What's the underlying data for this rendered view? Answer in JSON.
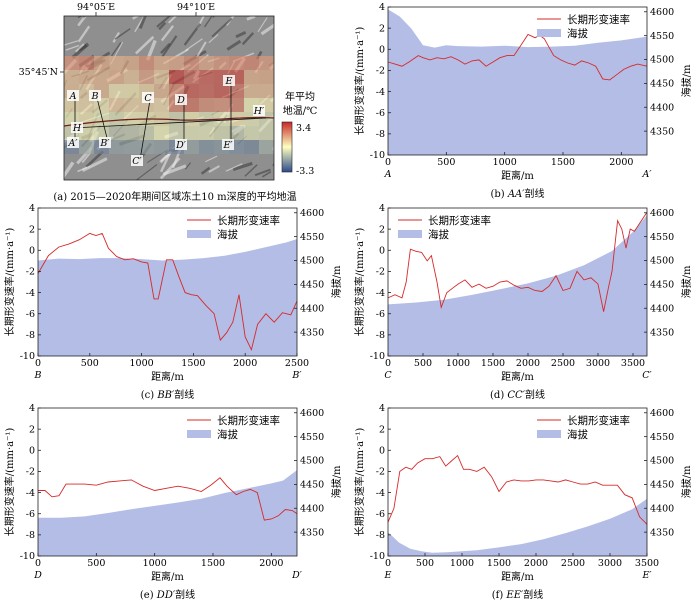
{
  "map_panel": {
    "lon_labels": [
      "94°05′E",
      "94°10′E"
    ],
    "lat_label": "35°45′N",
    "legend_title_line1": "年平均",
    "legend_title_line2": "地温/℃",
    "legend_max": "3.4",
    "legend_min": "-3.3",
    "profile_letters": [
      "A",
      "B",
      "C",
      "D",
      "E",
      "H",
      "A′",
      "B′",
      "C′",
      "D′",
      "E′",
      "H′"
    ],
    "caption": "(a) 2015—2020年期间区域冻土10 m深度的平均地温"
  },
  "colors": {
    "deformation_line": "#d62a2a",
    "elevation_fill": "#b3bde6",
    "colorbar_high": "#c62828",
    "colorbar_mid": "#ffffbf",
    "colorbar_low": "#2c4a8c"
  },
  "chart_data": [
    {
      "id": "b",
      "type": "line",
      "caption_prefix": "(b) ",
      "caption_name": "AA′",
      "caption_suffix": "剖线",
      "start_label": "A",
      "end_label": "A′",
      "xlabel": "距离/m",
      "ylabel_left": "长期形变速率/(mm·a⁻¹)",
      "ylabel_right": "海拔/m",
      "legend": [
        "长期形变速率",
        "海拔"
      ],
      "legend_placement": "top-right",
      "xlim": [
        0,
        2220
      ],
      "xticks": [
        0,
        500,
        1000,
        1500,
        2000
      ],
      "ylim_left": [
        -10,
        4
      ],
      "yticks_left": [
        -10,
        -8,
        -6,
        -4,
        -2,
        0,
        2,
        4
      ],
      "ylim_right": [
        4300,
        4610
      ],
      "yticks_right": [
        4350,
        4400,
        4450,
        4500,
        4550,
        4600
      ],
      "deformation_x": [
        0,
        60,
        120,
        180,
        220,
        260,
        300,
        360,
        420,
        480,
        540,
        600,
        660,
        720,
        780,
        840,
        900,
        960,
        1020,
        1080,
        1140,
        1200,
        1260,
        1300,
        1340,
        1380,
        1420,
        1480,
        1540,
        1600,
        1660,
        1720,
        1780,
        1840,
        1900,
        1960,
        2020,
        2080,
        2140,
        2220
      ],
      "deformation_y": [
        -1.2,
        -1.4,
        -1.6,
        -1.2,
        -0.9,
        -0.6,
        -0.8,
        -1.0,
        -0.8,
        -0.9,
        -0.7,
        -1.0,
        -1.4,
        -1.1,
        -1.0,
        -1.6,
        -1.2,
        -0.8,
        -0.6,
        -0.6,
        0.4,
        1.4,
        1.1,
        1.3,
        1.0,
        0.2,
        -0.6,
        -1.0,
        -1.3,
        -1.5,
        -1.1,
        -1.3,
        -1.6,
        -2.8,
        -2.9,
        -2.4,
        -1.9,
        -1.6,
        -1.4,
        -1.6
      ],
      "elevation_x": [
        0,
        100,
        200,
        300,
        400,
        500,
        600,
        800,
        1000,
        1200,
        1400,
        1600,
        1800,
        2000,
        2220
      ],
      "elevation_y": [
        4605,
        4590,
        4565,
        4530,
        4525,
        4530,
        4528,
        4527,
        4529,
        4526,
        4527,
        4529,
        4535,
        4540,
        4548
      ]
    },
    {
      "id": "c",
      "type": "line",
      "caption_prefix": "(c) ",
      "caption_name": "BB′",
      "caption_suffix": "剖线",
      "start_label": "B",
      "end_label": "B′",
      "xlabel": "距离/m",
      "ylabel_left": "长期形变速率/(mm·a⁻¹)",
      "ylabel_right": "海拔/m",
      "legend": [
        "长期形变速率",
        "海拔"
      ],
      "legend_placement": "top-right",
      "xlim": [
        0,
        2500
      ],
      "xticks": [
        0,
        500,
        1000,
        1500,
        2000,
        2500
      ],
      "ylim_left": [
        -10,
        4
      ],
      "yticks_left": [
        -10,
        -8,
        -6,
        -4,
        -2,
        0,
        2,
        4
      ],
      "ylim_right": [
        4300,
        4610
      ],
      "yticks_right": [
        4350,
        4400,
        4450,
        4500,
        4550,
        4600
      ],
      "deformation_x": [
        0,
        100,
        200,
        300,
        400,
        500,
        560,
        620,
        680,
        760,
        840,
        920,
        1000,
        1060,
        1120,
        1160,
        1240,
        1300,
        1360,
        1420,
        1480,
        1540,
        1620,
        1700,
        1760,
        1820,
        1880,
        1940,
        2000,
        2060,
        2120,
        2200,
        2280,
        2360,
        2440,
        2500
      ],
      "deformation_y": [
        -2.2,
        -0.5,
        0.3,
        0.6,
        1.0,
        1.6,
        1.4,
        1.6,
        0.2,
        -0.6,
        -0.9,
        -0.8,
        -1.1,
        -1.2,
        -4.6,
        -4.6,
        -0.9,
        -0.9,
        -2.5,
        -4.0,
        -4.2,
        -4.3,
        -5.2,
        -6.0,
        -8.5,
        -7.8,
        -6.8,
        -4.2,
        -8.2,
        -9.4,
        -7.0,
        -6.0,
        -6.8,
        -5.9,
        -6.1,
        -4.8
      ],
      "elevation_x": [
        0,
        200,
        400,
        600,
        800,
        1000,
        1200,
        1400,
        1600,
        1800,
        2000,
        2200,
        2400,
        2500
      ],
      "elevation_y": [
        4500,
        4504,
        4503,
        4505,
        4505,
        4503,
        4500,
        4502,
        4505,
        4510,
        4518,
        4528,
        4538,
        4545
      ]
    },
    {
      "id": "d",
      "type": "line",
      "caption_prefix": "(d) ",
      "caption_name": "CC′",
      "caption_suffix": "剖线",
      "start_label": "C",
      "end_label": "C′",
      "xlabel": "距离/m",
      "ylabel_left": "长期形变速率/(mm·a⁻¹)",
      "ylabel_right": "海拔/m",
      "legend": [
        "长期形变速率",
        "海拔"
      ],
      "legend_placement": "top-left",
      "xlim": [
        0,
        3700
      ],
      "xticks": [
        0,
        500,
        1000,
        1500,
        2000,
        2500,
        3000,
        3500
      ],
      "ylim_left": [
        -10,
        4
      ],
      "yticks_left": [
        -10,
        -8,
        -6,
        -4,
        -2,
        0,
        2,
        4
      ],
      "ylim_right": [
        4300,
        4610
      ],
      "yticks_right": [
        4350,
        4400,
        4450,
        4500,
        4550,
        4600
      ],
      "deformation_x": [
        0,
        100,
        200,
        260,
        320,
        400,
        480,
        560,
        620,
        700,
        760,
        840,
        920,
        1000,
        1100,
        1200,
        1300,
        1400,
        1500,
        1600,
        1700,
        1800,
        1900,
        2000,
        2100,
        2200,
        2300,
        2400,
        2500,
        2600,
        2700,
        2800,
        2900,
        3000,
        3080,
        3150,
        3200,
        3280,
        3340,
        3400,
        3460,
        3520,
        3600,
        3700
      ],
      "deformation_y": [
        -4.5,
        -4.2,
        -4.5,
        -3.0,
        0.1,
        -0.1,
        -0.2,
        -1.0,
        -0.5,
        -3.0,
        -5.4,
        -4.0,
        -3.6,
        -3.2,
        -2.8,
        -3.5,
        -3.2,
        -3.6,
        -3.4,
        -3.0,
        -2.9,
        -3.3,
        -3.6,
        -3.5,
        -3.8,
        -3.9,
        -3.4,
        -2.4,
        -3.8,
        -3.6,
        -2.0,
        -2.8,
        -2.6,
        -3.2,
        -5.8,
        -3.5,
        -2.0,
        2.8,
        2.0,
        0.2,
        2.0,
        1.8,
        2.6,
        3.6
      ],
      "elevation_x": [
        0,
        400,
        800,
        1200,
        1600,
        2000,
        2400,
        2800,
        3200,
        3500,
        3700
      ],
      "elevation_y": [
        4408,
        4412,
        4418,
        4428,
        4440,
        4452,
        4468,
        4490,
        4520,
        4560,
        4595
      ]
    },
    {
      "id": "e",
      "type": "line",
      "caption_prefix": "(e) ",
      "caption_name": "DD′",
      "caption_suffix": "剖线",
      "start_label": "D",
      "end_label": "D′",
      "xlabel": "距离/m",
      "ylabel_left": "长期形变速率/(mm·a⁻¹)",
      "ylabel_right": "海拔/m",
      "legend": [
        "长期形变速率",
        "海拔"
      ],
      "legend_placement": "top-right",
      "xlim": [
        0,
        2220
      ],
      "xticks": [
        0,
        500,
        1000,
        1500,
        2000
      ],
      "ylim_left": [
        -10,
        4
      ],
      "yticks_left": [
        -10,
        -8,
        -6,
        -4,
        -2,
        0,
        2,
        4
      ],
      "ylim_right": [
        4300,
        4610
      ],
      "yticks_right": [
        4350,
        4400,
        4450,
        4500,
        4550,
        4600
      ],
      "deformation_x": [
        0,
        60,
        120,
        180,
        240,
        300,
        400,
        500,
        600,
        700,
        800,
        900,
        1000,
        1100,
        1200,
        1300,
        1400,
        1480,
        1560,
        1620,
        1700,
        1760,
        1820,
        1880,
        1940,
        2000,
        2060,
        2120,
        2180,
        2220
      ],
      "deformation_y": [
        -3.8,
        -3.8,
        -4.4,
        -4.3,
        -3.2,
        -3.2,
        -3.2,
        -3.3,
        -3.0,
        -2.9,
        -2.8,
        -3.4,
        -3.8,
        -3.6,
        -3.4,
        -3.6,
        -3.9,
        -3.3,
        -2.6,
        -3.4,
        -4.2,
        -3.9,
        -3.7,
        -4.0,
        -6.6,
        -6.5,
        -6.2,
        -5.6,
        -5.7,
        -6.0
      ],
      "elevation_x": [
        0,
        200,
        400,
        600,
        800,
        1000,
        1200,
        1400,
        1600,
        1800,
        2000,
        2100,
        2220
      ],
      "elevation_y": [
        4380,
        4380,
        4383,
        4390,
        4398,
        4405,
        4412,
        4420,
        4432,
        4442,
        4452,
        4458,
        4480
      ]
    },
    {
      "id": "f",
      "type": "line",
      "caption_prefix": "(f) ",
      "caption_name": "EE′",
      "caption_suffix": "剖线",
      "start_label": "E",
      "end_label": "E′",
      "xlabel": "距离/m",
      "ylabel_left": "长期形变速率/(mm·a⁻¹)",
      "ylabel_right": "海拔/m",
      "legend": [
        "长期形变速率",
        "海拔"
      ],
      "legend_placement": "top-right",
      "xlim": [
        0,
        3500
      ],
      "xticks": [
        0,
        500,
        1000,
        1500,
        2000,
        2500,
        3000,
        3500
      ],
      "ylim_left": [
        -10,
        4
      ],
      "yticks_left": [
        -10,
        -8,
        -6,
        -4,
        -2,
        0,
        2,
        4
      ],
      "ylim_right": [
        4300,
        4610
      ],
      "yticks_right": [
        4350,
        4400,
        4450,
        4500,
        4550,
        4600
      ],
      "deformation_x": [
        0,
        80,
        160,
        240,
        320,
        400,
        500,
        600,
        700,
        780,
        860,
        940,
        1020,
        1100,
        1200,
        1300,
        1400,
        1500,
        1600,
        1700,
        1800,
        1900,
        2000,
        2100,
        2200,
        2300,
        2400,
        2500,
        2600,
        2700,
        2800,
        2900,
        3000,
        3100,
        3200,
        3300,
        3400,
        3500
      ],
      "deformation_y": [
        -6.8,
        -5.5,
        -2.0,
        -1.6,
        -1.8,
        -1.2,
        -0.8,
        -0.8,
        -0.6,
        -1.5,
        -1.0,
        -0.5,
        -1.8,
        -1.8,
        -2.0,
        -1.6,
        -2.5,
        -3.9,
        -3.0,
        -2.8,
        -2.9,
        -2.9,
        -2.8,
        -2.8,
        -2.9,
        -3.0,
        -2.8,
        -3.0,
        -3.2,
        -3.2,
        -3.0,
        -3.3,
        -3.3,
        -3.3,
        -4.2,
        -4.5,
        -6.3,
        -7.0
      ],
      "elevation_x": [
        0,
        150,
        300,
        450,
        600,
        800,
        1000,
        1200,
        1500,
        1800,
        2100,
        2400,
        2700,
        3000,
        3300,
        3500
      ],
      "elevation_y": [
        4350,
        4328,
        4315,
        4310,
        4307,
        4308,
        4310,
        4312,
        4318,
        4325,
        4335,
        4348,
        4362,
        4378,
        4398,
        4420
      ]
    }
  ]
}
